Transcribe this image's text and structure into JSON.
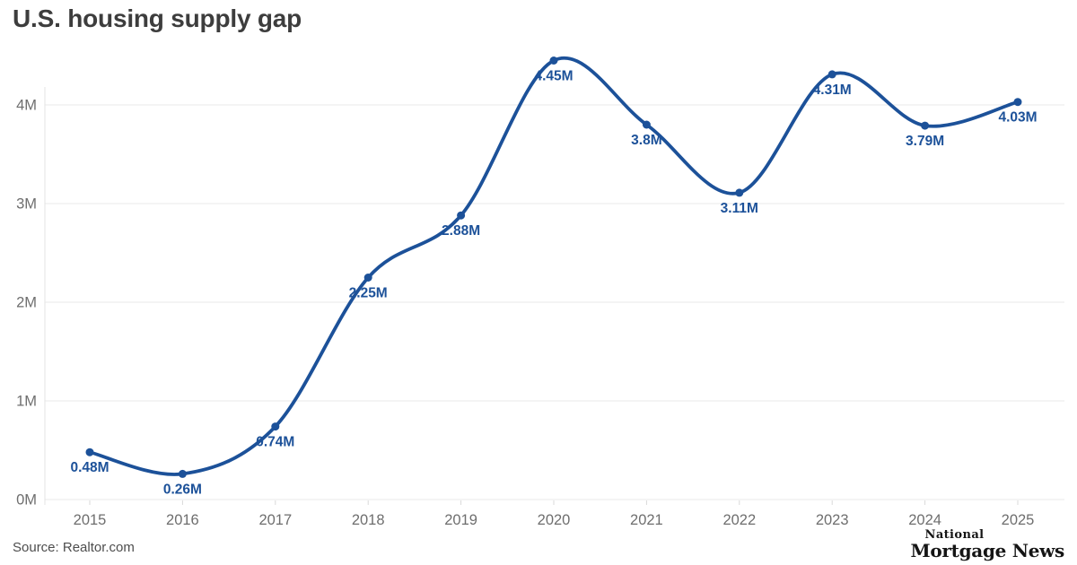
{
  "page": {
    "title": "U.S. housing supply gap",
    "source": "Source: Realtor.com",
    "logo": {
      "line1": "National",
      "line2": "Mortgage News"
    }
  },
  "colors": {
    "line": "#1c5199",
    "value_label": "#1c5199",
    "axis_text": "#6e6e6e",
    "gridline": "#e9e9e9",
    "axis_line": "#e3e3e3",
    "tick": "#d9d9d9",
    "title_text": "#3d3d3d",
    "source_text": "#4d4d4d",
    "logo_text": "#151515",
    "background": "#ffffff"
  },
  "chart_data": {
    "type": "line",
    "title": "U.S. housing supply gap",
    "categories": [
      "2015",
      "2016",
      "2017",
      "2018",
      "2019",
      "2020",
      "2021",
      "2022",
      "2023",
      "2024",
      "2025"
    ],
    "values": [
      0.48,
      0.26,
      0.74,
      2.25,
      2.88,
      4.45,
      3.8,
      3.11,
      4.31,
      3.79,
      4.03
    ],
    "point_labels": [
      "0.48M",
      "0.26M",
      "0.74M",
      "2.25M",
      "2.88M",
      "4.45M",
      "3.8M",
      "3.11M",
      "4.31M",
      "3.79M",
      "4.03M"
    ],
    "unit": "M",
    "xlabel": "",
    "ylabel": "",
    "ylim": [
      0,
      4.6
    ],
    "yticks": [
      {
        "value": 0,
        "label": "0M"
      },
      {
        "value": 1,
        "label": "1M"
      },
      {
        "value": 2,
        "label": "2M"
      },
      {
        "value": 3,
        "label": "3M"
      },
      {
        "value": 4,
        "label": "4M"
      }
    ],
    "grid": "horizontal",
    "legend": false,
    "source": "Realtor.com"
  }
}
